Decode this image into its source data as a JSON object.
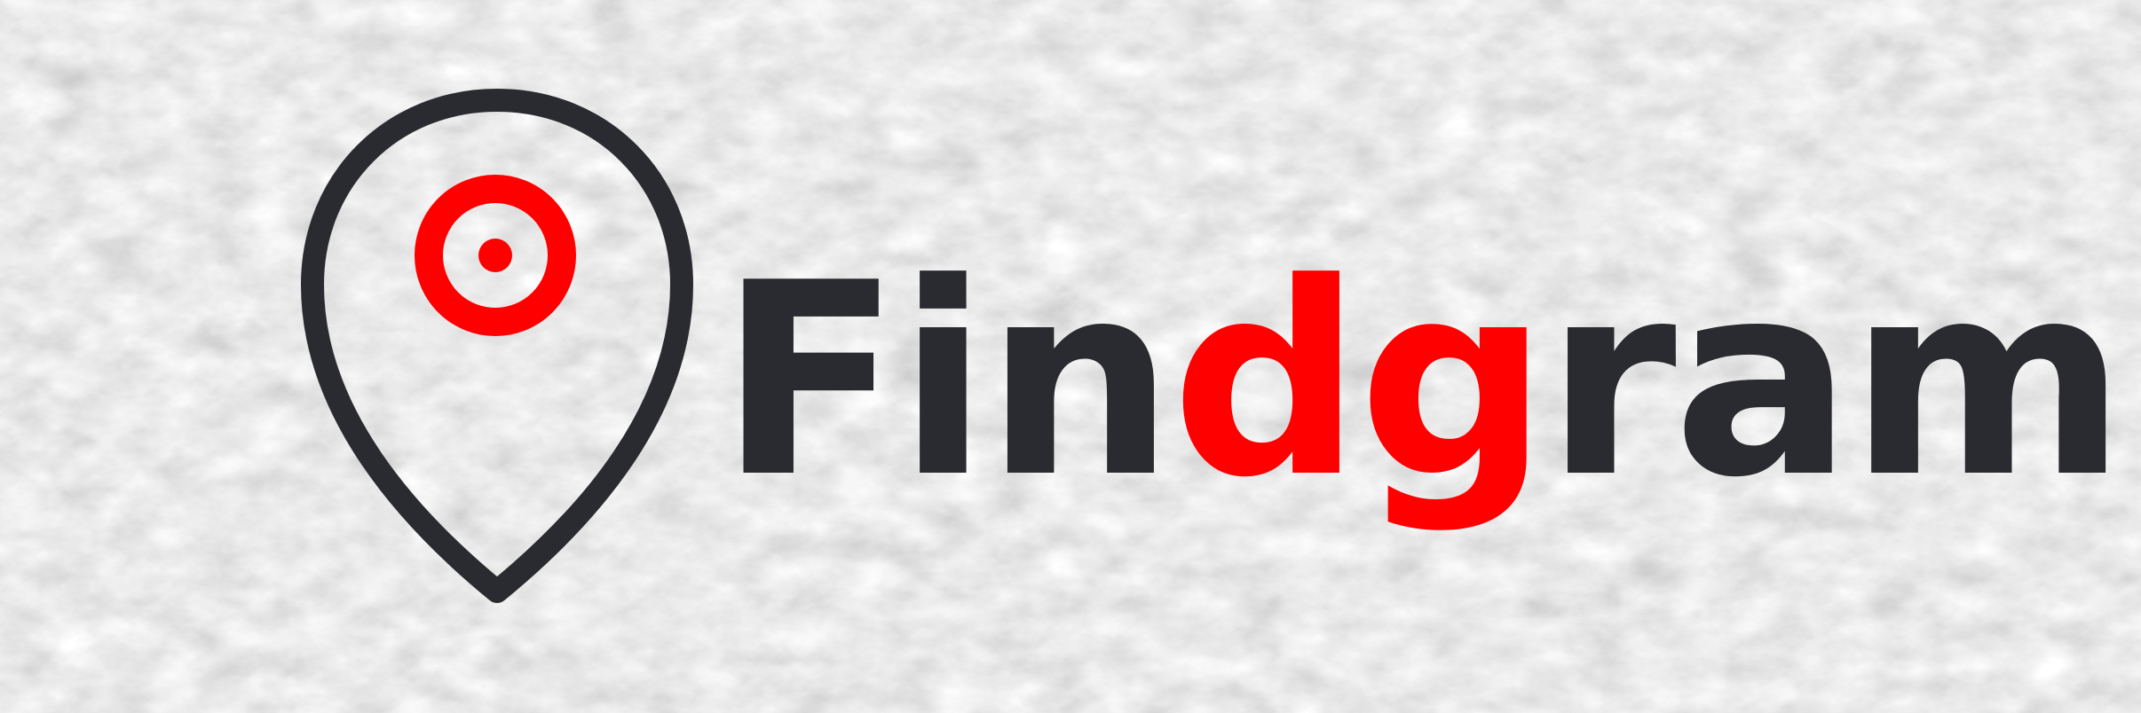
{
  "logo": {
    "icon": "location-pin-target-icon",
    "wordmark": {
      "part_1": "Fin",
      "part_2": "dg",
      "part_3": "ram"
    }
  },
  "colors": {
    "dark": "#2a2b30",
    "accent": "#ff0000",
    "background": "#d9d9d9"
  }
}
